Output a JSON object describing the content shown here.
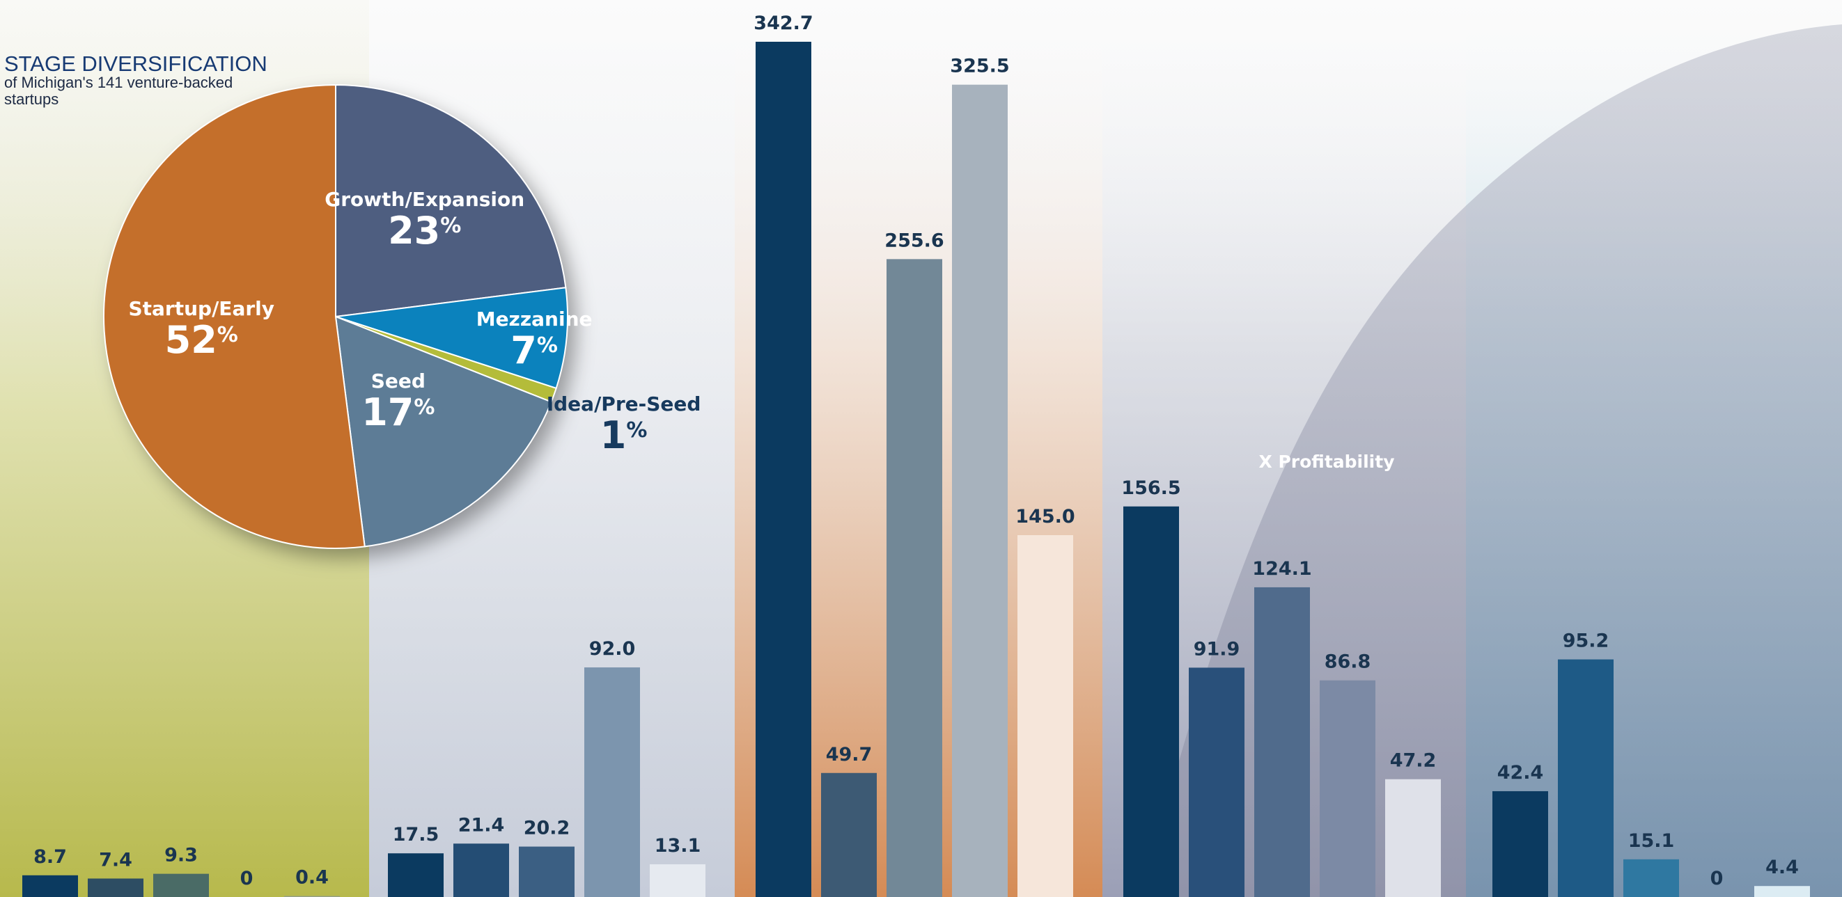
{
  "colors": {
    "orange": "#c46f2b",
    "slate": "#4e5e80",
    "blue": "#0b82bd",
    "steel": "#5d7c96",
    "lime": "#b4bc3a",
    "navy": "#0b3a60",
    "bar_label": "#1a3550"
  },
  "chart_data": [
    {
      "type": "pie",
      "title": "STAGE DIVERSIFICATION",
      "subtitle": "of Michigan's 141 venture-backed startups",
      "slices": [
        {
          "label": "Growth/Expansion",
          "pct_text": "23",
          "value": 23,
          "color": "#4e5e80"
        },
        {
          "label": "Mezzanine",
          "pct_text": "7",
          "value": 7,
          "color": "#0b82bd"
        },
        {
          "label": "Idea/Pre-Seed",
          "pct_text": "1",
          "value": 1,
          "color": "#b4bc3a"
        },
        {
          "label": "Seed",
          "pct_text": "17",
          "value": 17,
          "color": "#5d7c96"
        },
        {
          "label": "Startup/Early",
          "pct_text": "52",
          "value": 52,
          "color": "#c46f2b"
        }
      ],
      "percent_symbol": "%"
    },
    {
      "type": "bar",
      "annotation": "X Profitability",
      "groups": [
        {
          "values": [
            8.7,
            7.4,
            9.3,
            0,
            0.4
          ],
          "labels": [
            "8.7",
            "7.4",
            "9.3",
            "0",
            "0.4"
          ]
        },
        {
          "values": [
            17.5,
            21.4,
            20.2,
            92.0,
            13.1
          ],
          "labels": [
            "17.5",
            "21.4",
            "20.2",
            "92.0",
            "13.1"
          ]
        },
        {
          "values": [
            342.7,
            49.7,
            255.6,
            325.5,
            145.0
          ],
          "labels": [
            "342.7",
            "49.7",
            "255.6",
            "325.5",
            "145.0"
          ]
        },
        {
          "values": [
            156.5,
            91.9,
            124.1,
            86.8,
            47.2
          ],
          "labels": [
            "156.5",
            "91.9",
            "124.1",
            "86.8",
            "47.2"
          ]
        },
        {
          "values": [
            42.4,
            95.2,
            15.1,
            0,
            4.4
          ],
          "labels": [
            "42.4",
            "95.2",
            "15.1",
            "0",
            "4.4"
          ]
        }
      ]
    }
  ]
}
